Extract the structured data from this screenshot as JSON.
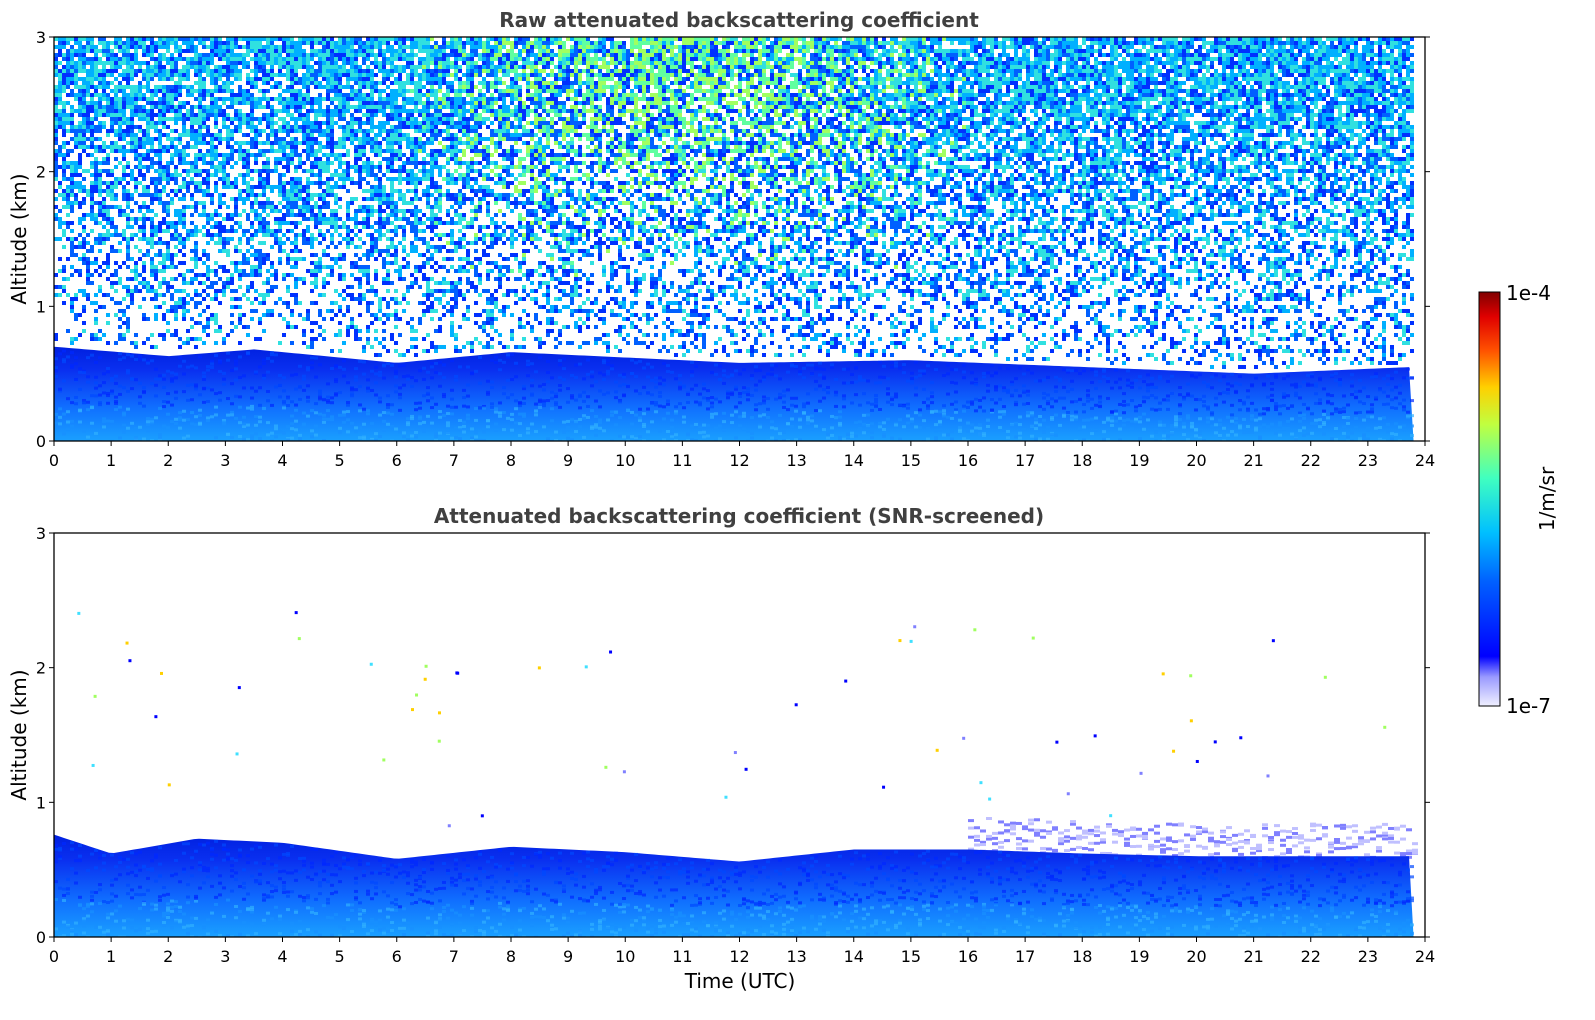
{
  "chart_data": [
    {
      "type": "heatmap",
      "title": "Raw attenuated backscattering coefficient",
      "xlabel": "",
      "ylabel": "Altitude (km)",
      "xlim": [
        0,
        24
      ],
      "ylim": [
        0,
        3
      ],
      "xticks": [
        "0",
        "1",
        "2",
        "3",
        "4",
        "5",
        "6",
        "7",
        "8",
        "9",
        "10",
        "11",
        "12",
        "13",
        "14",
        "15",
        "16",
        "17",
        "18",
        "19",
        "20",
        "21",
        "22",
        "23",
        "24"
      ],
      "yticks": [
        "0",
        "1",
        "2",
        "3"
      ],
      "data_extent_hours": 23.8,
      "boundary_layer_top_km": [
        {
          "x": 0,
          "y": 0.7
        },
        {
          "x": 2,
          "y": 0.63
        },
        {
          "x": 3.5,
          "y": 0.68
        },
        {
          "x": 6,
          "y": 0.58
        },
        {
          "x": 8,
          "y": 0.66
        },
        {
          "x": 12,
          "y": 0.58
        },
        {
          "x": 15,
          "y": 0.6
        },
        {
          "x": 18,
          "y": 0.55
        },
        {
          "x": 21,
          "y": 0.5
        },
        {
          "x": 23.8,
          "y": 0.55
        }
      ],
      "features": {
        "noise_above_layer": true,
        "enhanced_noise_daytime_hours": [
          6,
          16
        ],
        "colorscale": "jet"
      }
    },
    {
      "type": "heatmap",
      "title": "Attenuated backscattering coefficient (SNR-screened)",
      "xlabel": "Time (UTC)",
      "ylabel": "Altitude (km)",
      "xlim": [
        0,
        24
      ],
      "ylim": [
        0,
        3
      ],
      "xticks": [
        "0",
        "1",
        "2",
        "3",
        "4",
        "5",
        "6",
        "7",
        "8",
        "9",
        "10",
        "11",
        "12",
        "13",
        "14",
        "15",
        "16",
        "17",
        "18",
        "19",
        "20",
        "21",
        "22",
        "23",
        "24"
      ],
      "yticks": [
        "0",
        "1",
        "2",
        "3"
      ],
      "data_extent_hours": 23.8,
      "boundary_layer_top_km": [
        {
          "x": 0,
          "y": 0.76
        },
        {
          "x": 1,
          "y": 0.62
        },
        {
          "x": 2.5,
          "y": 0.73
        },
        {
          "x": 4,
          "y": 0.7
        },
        {
          "x": 6,
          "y": 0.58
        },
        {
          "x": 8,
          "y": 0.67
        },
        {
          "x": 10,
          "y": 0.63
        },
        {
          "x": 12,
          "y": 0.56
        },
        {
          "x": 14,
          "y": 0.65
        },
        {
          "x": 16,
          "y": 0.65
        },
        {
          "x": 18,
          "y": 0.62
        },
        {
          "x": 20,
          "y": 0.6
        },
        {
          "x": 22,
          "y": 0.6
        },
        {
          "x": 23.8,
          "y": 0.6
        }
      ],
      "features": {
        "noise_above_layer": false,
        "colorscale": "jet"
      }
    }
  ],
  "colorbar": {
    "label": "1/m/sr",
    "max_label": "1e-4",
    "min_label": "1e-7",
    "scale": "log",
    "range": [
      1e-07,
      0.0001
    ]
  }
}
